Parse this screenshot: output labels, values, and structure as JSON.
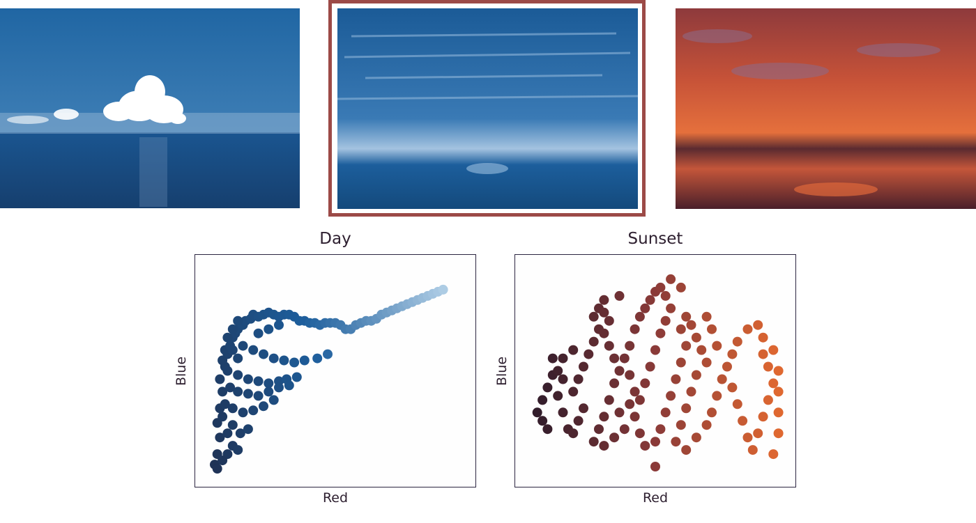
{
  "photos": [
    {
      "name": "day",
      "palette": [
        "#1e64a0",
        "#174f85",
        "#ffffff"
      ],
      "selected": false
    },
    {
      "name": "dusk",
      "palette": [
        "#1a5d9a",
        "#8fb5d8",
        "#124a7c"
      ],
      "selected": true
    },
    {
      "name": "sunset",
      "palette": [
        "#e0683a",
        "#8a3a38",
        "#3a1c2a"
      ],
      "selected": false
    }
  ],
  "selection_border_color": "#9c4a47",
  "chart_data": [
    {
      "type": "scatter",
      "title": "Day",
      "xlabel": "Red",
      "ylabel": "Blue",
      "ticks": "none",
      "grid": false,
      "color_from": "#1f2a48",
      "color_mid": "#1d5e9c",
      "color_to": "#b8d4ea",
      "points": [
        [
          0.03,
          0.05
        ],
        [
          0.04,
          0.1
        ],
        [
          0.05,
          0.18
        ],
        [
          0.04,
          0.25
        ],
        [
          0.05,
          0.32
        ],
        [
          0.06,
          0.4
        ],
        [
          0.05,
          0.46
        ],
        [
          0.07,
          0.52
        ],
        [
          0.08,
          0.58
        ],
        [
          0.07,
          0.6
        ],
        [
          0.09,
          0.62
        ],
        [
          0.1,
          0.66
        ],
        [
          0.11,
          0.68
        ],
        [
          0.12,
          0.7
        ],
        [
          0.14,
          0.72
        ],
        [
          0.15,
          0.74
        ],
        [
          0.17,
          0.75
        ],
        [
          0.18,
          0.77
        ],
        [
          0.2,
          0.76
        ],
        [
          0.22,
          0.77
        ],
        [
          0.24,
          0.78
        ],
        [
          0.26,
          0.77
        ],
        [
          0.28,
          0.76
        ],
        [
          0.3,
          0.77
        ],
        [
          0.32,
          0.77
        ],
        [
          0.34,
          0.76
        ],
        [
          0.36,
          0.74
        ],
        [
          0.38,
          0.74
        ],
        [
          0.4,
          0.73
        ],
        [
          0.42,
          0.73
        ],
        [
          0.44,
          0.72
        ],
        [
          0.46,
          0.73
        ],
        [
          0.48,
          0.73
        ],
        [
          0.5,
          0.73
        ],
        [
          0.52,
          0.72
        ],
        [
          0.54,
          0.7
        ],
        [
          0.56,
          0.7
        ],
        [
          0.58,
          0.72
        ],
        [
          0.6,
          0.73
        ],
        [
          0.62,
          0.74
        ],
        [
          0.64,
          0.74
        ],
        [
          0.66,
          0.75
        ],
        [
          0.68,
          0.77
        ],
        [
          0.7,
          0.78
        ],
        [
          0.72,
          0.79
        ],
        [
          0.74,
          0.8
        ],
        [
          0.76,
          0.81
        ],
        [
          0.78,
          0.82
        ],
        [
          0.8,
          0.83
        ],
        [
          0.82,
          0.84
        ],
        [
          0.84,
          0.85
        ],
        [
          0.86,
          0.86
        ],
        [
          0.88,
          0.87
        ],
        [
          0.9,
          0.88
        ],
        [
          0.92,
          0.89
        ],
        [
          0.14,
          0.62
        ],
        [
          0.18,
          0.6
        ],
        [
          0.22,
          0.58
        ],
        [
          0.26,
          0.56
        ],
        [
          0.3,
          0.55
        ],
        [
          0.34,
          0.54
        ],
        [
          0.38,
          0.55
        ],
        [
          0.43,
          0.56
        ],
        [
          0.47,
          0.58
        ],
        [
          0.08,
          0.5
        ],
        [
          0.12,
          0.48
        ],
        [
          0.16,
          0.46
        ],
        [
          0.2,
          0.45
        ],
        [
          0.24,
          0.44
        ],
        [
          0.28,
          0.45
        ],
        [
          0.31,
          0.46
        ],
        [
          0.35,
          0.47
        ],
        [
          0.09,
          0.42
        ],
        [
          0.12,
          0.4
        ],
        [
          0.16,
          0.39
        ],
        [
          0.2,
          0.38
        ],
        [
          0.24,
          0.4
        ],
        [
          0.28,
          0.42
        ],
        [
          0.32,
          0.43
        ],
        [
          0.07,
          0.34
        ],
        [
          0.1,
          0.32
        ],
        [
          0.14,
          0.3
        ],
        [
          0.18,
          0.31
        ],
        [
          0.22,
          0.33
        ],
        [
          0.26,
          0.36
        ],
        [
          0.06,
          0.28
        ],
        [
          0.1,
          0.24
        ],
        [
          0.13,
          0.2
        ],
        [
          0.16,
          0.22
        ],
        [
          0.08,
          0.2
        ],
        [
          0.1,
          0.14
        ],
        [
          0.12,
          0.12
        ],
        [
          0.08,
          0.1
        ],
        [
          0.06,
          0.07
        ],
        [
          0.04,
          0.03
        ],
        [
          0.1,
          0.6
        ],
        [
          0.12,
          0.56
        ],
        [
          0.06,
          0.55
        ],
        [
          0.2,
          0.68
        ],
        [
          0.24,
          0.7
        ],
        [
          0.28,
          0.72
        ],
        [
          0.08,
          0.66
        ],
        [
          0.1,
          0.7
        ],
        [
          0.12,
          0.74
        ]
      ]
    },
    {
      "type": "scatter",
      "title": "Sunset",
      "xlabel": "Red",
      "ylabel": "Blue",
      "ticks": "none",
      "grid": false,
      "color_from": "#2a1a2a",
      "color_mid": "#8a3a38",
      "color_to": "#e36a30",
      "points": [
        [
          0.04,
          0.3
        ],
        [
          0.06,
          0.26
        ],
        [
          0.08,
          0.22
        ],
        [
          0.06,
          0.36
        ],
        [
          0.08,
          0.42
        ],
        [
          0.1,
          0.48
        ],
        [
          0.12,
          0.5
        ],
        [
          0.14,
          0.46
        ],
        [
          0.12,
          0.38
        ],
        [
          0.14,
          0.3
        ],
        [
          0.16,
          0.22
        ],
        [
          0.18,
          0.2
        ],
        [
          0.2,
          0.26
        ],
        [
          0.22,
          0.32
        ],
        [
          0.18,
          0.4
        ],
        [
          0.2,
          0.46
        ],
        [
          0.22,
          0.52
        ],
        [
          0.24,
          0.58
        ],
        [
          0.26,
          0.64
        ],
        [
          0.28,
          0.7
        ],
        [
          0.26,
          0.76
        ],
        [
          0.28,
          0.8
        ],
        [
          0.3,
          0.78
        ],
        [
          0.32,
          0.74
        ],
        [
          0.3,
          0.68
        ],
        [
          0.32,
          0.62
        ],
        [
          0.34,
          0.56
        ],
        [
          0.36,
          0.5
        ],
        [
          0.34,
          0.44
        ],
        [
          0.32,
          0.36
        ],
        [
          0.3,
          0.28
        ],
        [
          0.28,
          0.22
        ],
        [
          0.26,
          0.16
        ],
        [
          0.3,
          0.14
        ],
        [
          0.34,
          0.18
        ],
        [
          0.38,
          0.22
        ],
        [
          0.36,
          0.3
        ],
        [
          0.4,
          0.34
        ],
        [
          0.42,
          0.4
        ],
        [
          0.4,
          0.48
        ],
        [
          0.38,
          0.56
        ],
        [
          0.4,
          0.62
        ],
        [
          0.42,
          0.7
        ],
        [
          0.44,
          0.76
        ],
        [
          0.46,
          0.8
        ],
        [
          0.48,
          0.84
        ],
        [
          0.5,
          0.88
        ],
        [
          0.52,
          0.9
        ],
        [
          0.54,
          0.86
        ],
        [
          0.56,
          0.8
        ],
        [
          0.54,
          0.74
        ],
        [
          0.52,
          0.68
        ],
        [
          0.5,
          0.6
        ],
        [
          0.48,
          0.52
        ],
        [
          0.46,
          0.44
        ],
        [
          0.44,
          0.36
        ],
        [
          0.42,
          0.28
        ],
        [
          0.44,
          0.2
        ],
        [
          0.46,
          0.14
        ],
        [
          0.5,
          0.16
        ],
        [
          0.52,
          0.22
        ],
        [
          0.54,
          0.3
        ],
        [
          0.56,
          0.38
        ],
        [
          0.58,
          0.46
        ],
        [
          0.6,
          0.54
        ],
        [
          0.62,
          0.62
        ],
        [
          0.6,
          0.7
        ],
        [
          0.62,
          0.76
        ],
        [
          0.64,
          0.72
        ],
        [
          0.66,
          0.66
        ],
        [
          0.68,
          0.6
        ],
        [
          0.7,
          0.54
        ],
        [
          0.66,
          0.48
        ],
        [
          0.64,
          0.4
        ],
        [
          0.62,
          0.32
        ],
        [
          0.6,
          0.24
        ],
        [
          0.58,
          0.16
        ],
        [
          0.62,
          0.12
        ],
        [
          0.66,
          0.18
        ],
        [
          0.7,
          0.24
        ],
        [
          0.72,
          0.3
        ],
        [
          0.74,
          0.38
        ],
        [
          0.76,
          0.46
        ],
        [
          0.78,
          0.52
        ],
        [
          0.8,
          0.58
        ],
        [
          0.82,
          0.64
        ],
        [
          0.8,
          0.42
        ],
        [
          0.82,
          0.34
        ],
        [
          0.84,
          0.26
        ],
        [
          0.86,
          0.18
        ],
        [
          0.88,
          0.12
        ],
        [
          0.9,
          0.2
        ],
        [
          0.92,
          0.28
        ],
        [
          0.94,
          0.36
        ],
        [
          0.96,
          0.44
        ],
        [
          0.94,
          0.52
        ],
        [
          0.92,
          0.58
        ],
        [
          0.96,
          0.6
        ],
        [
          0.98,
          0.5
        ],
        [
          0.98,
          0.4
        ],
        [
          0.98,
          0.3
        ],
        [
          0.98,
          0.2
        ],
        [
          0.96,
          0.1
        ],
        [
          0.92,
          0.66
        ],
        [
          0.9,
          0.72
        ],
        [
          0.86,
          0.7
        ],
        [
          0.74,
          0.62
        ],
        [
          0.72,
          0.7
        ],
        [
          0.7,
          0.76
        ],
        [
          0.5,
          0.04
        ],
        [
          0.36,
          0.86
        ],
        [
          0.3,
          0.84
        ],
        [
          0.18,
          0.6
        ],
        [
          0.14,
          0.56
        ],
        [
          0.1,
          0.56
        ],
        [
          0.56,
          0.94
        ],
        [
          0.6,
          0.9
        ]
      ]
    }
  ]
}
